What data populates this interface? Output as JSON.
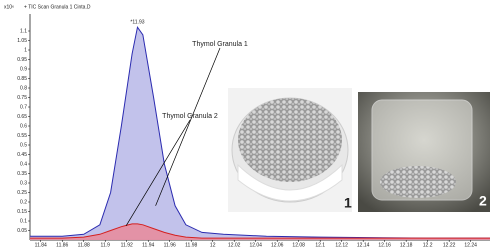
{
  "chart_data": {
    "type": "line",
    "title": "+ TIC Scan Granula 1 Cinta.D",
    "y_unit": "x10⁶",
    "x": [
      11.83,
      11.86,
      11.88,
      11.895,
      11.905,
      11.915,
      11.925,
      11.93,
      11.935,
      11.945,
      11.955,
      11.965,
      11.975,
      11.99,
      12.01,
      12.05,
      12.1,
      12.2,
      12.258
    ],
    "series": [
      {
        "name": "Thymol Granula 1",
        "color": "#2b2bb0",
        "fill": "#b7b7e8",
        "values": [
          0.02,
          0.02,
          0.03,
          0.08,
          0.25,
          0.6,
          0.98,
          1.12,
          1.08,
          0.75,
          0.4,
          0.18,
          0.08,
          0.04,
          0.03,
          0.02,
          0.015,
          0.01,
          0.01
        ]
      },
      {
        "name": "Thymol Granula 2",
        "color": "#d42020",
        "fill": "#e98a9a",
        "values": [
          0.01,
          0.01,
          0.015,
          0.03,
          0.05,
          0.07,
          0.085,
          0.085,
          0.08,
          0.06,
          0.04,
          0.025,
          0.015,
          0.01,
          0.01,
          0.01,
          0.01,
          0.01,
          0.01
        ]
      }
    ],
    "peak_label": "*11.93",
    "photo_labels": [
      "1",
      "2"
    ],
    "xlim": [
      11.83,
      12.258
    ],
    "xticks": [
      11.84,
      11.86,
      11.88,
      11.9,
      11.92,
      11.94,
      11.96,
      11.98,
      12,
      12.02,
      12.04,
      12.06,
      12.08,
      12.1,
      12.12,
      12.14,
      12.16,
      12.18,
      12.2,
      12.22,
      12.24
    ],
    "ylim": [
      0,
      1.15
    ],
    "yticks": [
      0.05,
      0.1,
      0.15,
      0.2,
      0.25,
      0.3,
      0.35,
      0.4,
      0.45,
      0.5,
      0.55,
      0.6,
      0.65,
      0.7,
      0.75,
      0.8,
      0.85,
      0.9,
      0.95,
      1,
      1.05,
      1.1
    ]
  }
}
